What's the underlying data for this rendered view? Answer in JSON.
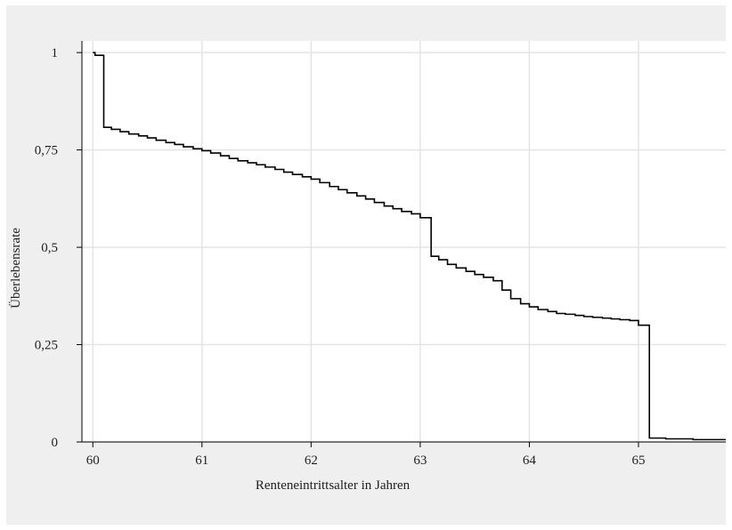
{
  "colors": {
    "outer_background": "#efefef",
    "plot_background": "#ffffff",
    "grid": "#e4e4e4",
    "line": "#000000",
    "axis": "#000000"
  },
  "chart_data": {
    "type": "line",
    "step": true,
    "xlabel": "Renteneintrittsalter in Jahren",
    "ylabel": "Überlebensrate",
    "xlim": [
      59.9,
      65.8
    ],
    "ylim": [
      0,
      1.03
    ],
    "grid": true,
    "legend": "none",
    "x_ticks": [
      {
        "value": 60,
        "label": "60"
      },
      {
        "value": 61,
        "label": "61"
      },
      {
        "value": 62,
        "label": "62"
      },
      {
        "value": 63,
        "label": "63"
      },
      {
        "value": 64,
        "label": "64"
      },
      {
        "value": 65,
        "label": "65"
      }
    ],
    "y_ticks": [
      {
        "value": 0,
        "label": "0"
      },
      {
        "value": 0.25,
        "label": "0,25"
      },
      {
        "value": 0.5,
        "label": "0,5"
      },
      {
        "value": 0.75,
        "label": "0,75"
      },
      {
        "value": 1,
        "label": "1"
      }
    ],
    "series": [
      {
        "x": [
          60.0,
          60.02,
          60.1,
          60.17,
          60.25,
          60.33,
          60.42,
          60.5,
          60.58,
          60.67,
          60.75,
          60.83,
          60.92,
          61.0,
          61.08,
          61.17,
          61.25,
          61.33,
          61.42,
          61.5,
          61.58,
          61.67,
          61.75,
          61.83,
          61.92,
          62.0,
          62.08,
          62.17,
          62.25,
          62.33,
          62.42,
          62.5,
          62.58,
          62.67,
          62.75,
          62.83,
          62.92,
          63.0,
          63.1,
          63.17,
          63.25,
          63.33,
          63.42,
          63.5,
          63.58,
          63.67,
          63.75,
          63.83,
          63.92,
          64.0,
          64.08,
          64.17,
          64.25,
          64.33,
          64.42,
          64.5,
          64.58,
          64.67,
          64.75,
          64.83,
          64.92,
          65.0,
          65.1,
          65.25,
          65.5,
          65.8
        ],
        "y": [
          1.0,
          0.993,
          0.808,
          0.803,
          0.797,
          0.791,
          0.786,
          0.781,
          0.775,
          0.769,
          0.764,
          0.758,
          0.753,
          0.748,
          0.742,
          0.735,
          0.728,
          0.722,
          0.717,
          0.712,
          0.706,
          0.7,
          0.693,
          0.687,
          0.681,
          0.675,
          0.666,
          0.656,
          0.648,
          0.64,
          0.632,
          0.624,
          0.615,
          0.606,
          0.599,
          0.592,
          0.586,
          0.576,
          0.477,
          0.468,
          0.456,
          0.447,
          0.438,
          0.43,
          0.423,
          0.414,
          0.39,
          0.368,
          0.355,
          0.347,
          0.34,
          0.335,
          0.33,
          0.328,
          0.325,
          0.322,
          0.32,
          0.318,
          0.316,
          0.314,
          0.312,
          0.3,
          0.01,
          0.008,
          0.006,
          0.006
        ]
      }
    ]
  }
}
